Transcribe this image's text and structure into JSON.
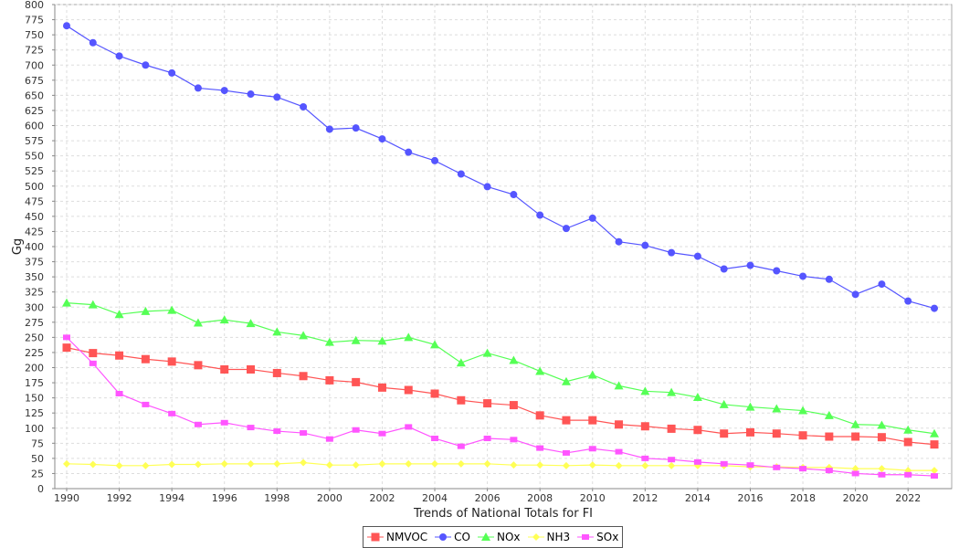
{
  "chart_data": {
    "type": "line",
    "title": "",
    "xlabel": "Trends of National Totals for FI",
    "ylabel": "Gg",
    "ylim": [
      0,
      800
    ],
    "ytick_step": 25,
    "xlim": [
      1990,
      2023
    ],
    "xticks": [
      1990,
      1992,
      1994,
      1996,
      1998,
      2000,
      2002,
      2004,
      2006,
      2008,
      2010,
      2012,
      2014,
      2016,
      2018,
      2020,
      2022
    ],
    "grid": true,
    "legend_position": "bottom",
    "x": [
      1990,
      1991,
      1992,
      1993,
      1994,
      1995,
      1996,
      1997,
      1998,
      1999,
      2000,
      2001,
      2002,
      2003,
      2004,
      2005,
      2006,
      2007,
      2008,
      2009,
      2010,
      2011,
      2012,
      2013,
      2014,
      2015,
      2016,
      2017,
      2018,
      2019,
      2020,
      2021,
      2022,
      2023
    ],
    "series": [
      {
        "name": "NMVOC",
        "color": "#ff5555",
        "marker": "square",
        "values": [
          233,
          224,
          220,
          214,
          210,
          204,
          197,
          197,
          191,
          186,
          179,
          176,
          167,
          163,
          157,
          146,
          141,
          138,
          121,
          113,
          113,
          106,
          103,
          99,
          97,
          91,
          93,
          91,
          88,
          86,
          86,
          85,
          77,
          73
        ]
      },
      {
        "name": "CO",
        "color": "#5555ff",
        "marker": "circle",
        "values": [
          765,
          737,
          715,
          700,
          687,
          662,
          658,
          652,
          647,
          631,
          594,
          596,
          578,
          556,
          542,
          520,
          499,
          486,
          452,
          430,
          447,
          408,
          402,
          390,
          384,
          363,
          369,
          360,
          351,
          346,
          321,
          338,
          310,
          298
        ]
      },
      {
        "name": "NOx",
        "color": "#55ff55",
        "marker": "triangle",
        "values": [
          307,
          304,
          288,
          293,
          295,
          274,
          279,
          273,
          259,
          253,
          242,
          245,
          244,
          250,
          238,
          208,
          224,
          212,
          194,
          177,
          188,
          170,
          161,
          159,
          151,
          139,
          135,
          132,
          129,
          121,
          106,
          105,
          97,
          91
        ]
      },
      {
        "name": "NH3",
        "color": "#ffff55",
        "marker": "diamond",
        "values": [
          41,
          40,
          38,
          38,
          40,
          40,
          41,
          41,
          41,
          43,
          39,
          39,
          41,
          41,
          41,
          41,
          41,
          39,
          39,
          38,
          39,
          38,
          38,
          38,
          38,
          38,
          36,
          36,
          35,
          35,
          33,
          33,
          30,
          30
        ]
      },
      {
        "name": "SOx",
        "color": "#ff55ff",
        "marker": "small-square",
        "values": [
          250,
          207,
          157,
          139,
          124,
          106,
          109,
          101,
          95,
          92,
          82,
          97,
          91,
          102,
          83,
          70,
          83,
          81,
          67,
          59,
          66,
          61,
          50,
          48,
          44,
          41,
          39,
          35,
          33,
          30,
          25,
          23,
          23,
          21
        ]
      }
    ]
  }
}
